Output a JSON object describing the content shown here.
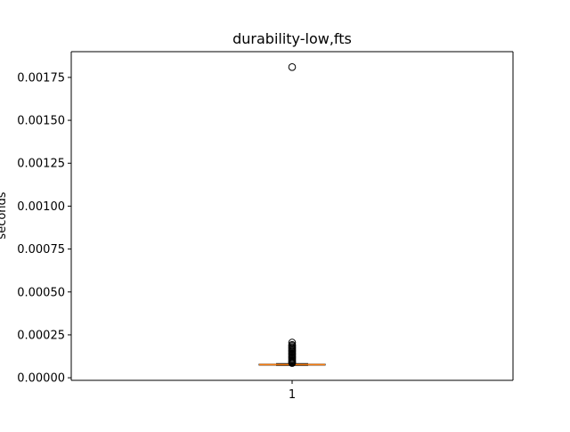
{
  "chart_data": {
    "type": "box",
    "title": "durability-low,fts",
    "xlabel": "",
    "ylabel": "seconds",
    "categories": [
      "1"
    ],
    "yticks": [
      "0.00000",
      "0.00025",
      "0.00050",
      "0.00075",
      "0.00100",
      "0.00125",
      "0.00150",
      "0.00175"
    ],
    "ytick_values": [
      0,
      0.00025,
      0.0005,
      0.00075,
      0.001,
      0.00125,
      0.0015,
      0.00175
    ],
    "ylim": [
      -1.5e-05,
      0.0019
    ],
    "xlim": [
      0.5,
      1.5
    ],
    "grid": false,
    "legend": "none",
    "boxes": [
      {
        "x": 1,
        "whisker_low": 7.2e-05,
        "q1": 7.4e-05,
        "median": 7.65e-05,
        "q3": 7.9e-05,
        "whisker_high": 8.2e-05,
        "outliers": [
          0.00181,
          0.000205,
          0.000192,
          0.000185,
          0.000178,
          0.000172,
          0.000166,
          0.00016,
          0.000154,
          0.000148,
          0.000142,
          0.000136,
          0.00013,
          0.000124,
          0.000118,
          0.000112,
          0.000106,
          0.0001,
          9.5e-05,
          9e-05,
          8.6e-05
        ]
      }
    ],
    "colors": {
      "box": "#000000",
      "median": "#ff7f0e",
      "outlier": "#000000"
    }
  }
}
